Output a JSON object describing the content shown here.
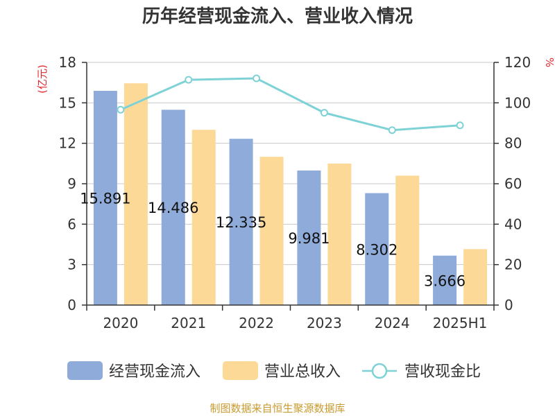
{
  "chart_data": {
    "type": "bar",
    "title": "历年经营现金流入、营业收入情况",
    "categories": [
      "2020",
      "2021",
      "2022",
      "2023",
      "2024",
      "2025H1"
    ],
    "series": [
      {
        "name": "经营现金流入",
        "axis": "left",
        "kind": "bar",
        "color": "#8eabd9",
        "values": [
          15.891,
          14.486,
          12.335,
          9.981,
          8.302,
          3.666
        ],
        "labels": [
          "15.891",
          "14.486",
          "12.335",
          "9.981",
          "8.302",
          "3.666"
        ]
      },
      {
        "name": "营业总收入",
        "axis": "left",
        "kind": "bar",
        "color": "#fdd997",
        "values": [
          16.45,
          13.0,
          11.0,
          10.5,
          9.6,
          4.15
        ]
      },
      {
        "name": "营收现金比",
        "axis": "right",
        "kind": "line",
        "color": "#7ed2d6",
        "values": [
          96.6,
          111.4,
          112.1,
          95.1,
          86.5,
          88.9
        ]
      }
    ],
    "yleft": {
      "unit": "(亿元)",
      "min": 0,
      "max": 18,
      "ticks": [
        0,
        3,
        6,
        9,
        12,
        15,
        18
      ]
    },
    "yright": {
      "unit": "%",
      "min": 0,
      "max": 120,
      "ticks": [
        0,
        20,
        40,
        60,
        80,
        100,
        120
      ]
    },
    "grid": true,
    "legend": "bottom"
  },
  "source": "制图数据来自恒生聚源数据库"
}
